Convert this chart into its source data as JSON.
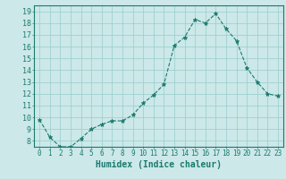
{
  "x": [
    0,
    1,
    2,
    3,
    4,
    5,
    6,
    7,
    8,
    9,
    10,
    11,
    12,
    13,
    14,
    15,
    16,
    17,
    18,
    19,
    20,
    21,
    22,
    23
  ],
  "y": [
    9.8,
    8.3,
    7.5,
    7.5,
    8.2,
    9.0,
    9.4,
    9.7,
    9.7,
    10.2,
    11.2,
    11.9,
    12.8,
    16.1,
    16.8,
    18.3,
    18.0,
    18.8,
    17.5,
    16.5,
    14.2,
    13.0,
    12.0,
    11.8
  ],
  "xlim": [
    -0.5,
    23.5
  ],
  "ylim": [
    7.5,
    19.5
  ],
  "yticks": [
    8,
    9,
    10,
    11,
    12,
    13,
    14,
    15,
    16,
    17,
    18,
    19
  ],
  "xticks": [
    0,
    1,
    2,
    3,
    4,
    5,
    6,
    7,
    8,
    9,
    10,
    11,
    12,
    13,
    14,
    15,
    16,
    17,
    18,
    19,
    20,
    21,
    22,
    23
  ],
  "xlabel": "Humidex (Indice chaleur)",
  "line_color": "#1a7a6e",
  "marker_color": "#1a7a6e",
  "bg_color": "#cce8e8",
  "grid_color": "#99cccc",
  "axis_color": "#1a7a6e",
  "tick_label_color": "#1a7a6e",
  "xlabel_color": "#1a7a6e",
  "xlabel_fontsize": 7,
  "ytick_fontsize": 6,
  "xtick_fontsize": 5.5
}
